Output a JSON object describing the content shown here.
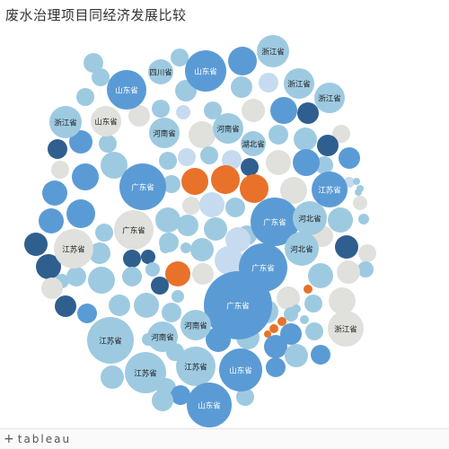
{
  "title": "废水治理项目同经济发展比较",
  "footer": {
    "logo_text": "tableau",
    "logo_mark": "+"
  },
  "chart_data": {
    "type": "bubble",
    "title": "废水治理项目同经济发展比较",
    "bubbles": [
      {
        "label": "浙江省",
        "value": 6,
        "color": "#9ecae1"
      },
      {
        "label": "四川省",
        "value": 3,
        "color": "#9ecae1"
      },
      {
        "label": "山东省",
        "value": 8,
        "color": "#5b9bd5"
      },
      {
        "label": "山东省",
        "value": 7,
        "color": "#5b9bd5"
      },
      {
        "label": "浙江省",
        "value": 5,
        "color": "#9ecae1"
      },
      {
        "label": "浙江省",
        "value": 5,
        "color": "#9ecae1"
      },
      {
        "label": "浙江省",
        "value": 5,
        "color": "#9ecae1"
      },
      {
        "label": "山东省",
        "value": 5,
        "color": "#e0e0dc"
      },
      {
        "label": "河南省",
        "value": 5,
        "color": "#9ecae1"
      },
      {
        "label": "河南省",
        "value": 5,
        "color": "#9ecae1"
      },
      {
        "label": "湖北省",
        "value": 4,
        "color": "#9ecae1"
      },
      {
        "label": "广东省",
        "value": 9,
        "color": "#5b9bd5"
      },
      {
        "label": "江苏省",
        "value": 7,
        "color": "#5b9bd5"
      },
      {
        "label": "广东省",
        "value": 7,
        "color": "#e0e0dc"
      },
      {
        "label": "广东省",
        "value": 10,
        "color": "#5b9bd5"
      },
      {
        "label": "河北省",
        "value": 5,
        "color": "#9ecae1"
      },
      {
        "label": "江苏省",
        "value": 7,
        "color": "#e0e0dc"
      },
      {
        "label": "河北省",
        "value": 5,
        "color": "#9ecae1"
      },
      {
        "label": "广东省",
        "value": 10,
        "color": "#5b9bd5"
      },
      {
        "label": "广东省",
        "value": 13,
        "color": "#5b9bd5"
      },
      {
        "label": "河南省",
        "value": 6,
        "color": "#9ecae1"
      },
      {
        "label": "河南省",
        "value": 6,
        "color": "#9ecae1"
      },
      {
        "label": "江苏省",
        "value": 10,
        "color": "#9ecae1"
      },
      {
        "label": "浙江省",
        "value": 5,
        "color": "#e0e0dc"
      },
      {
        "label": "江苏省",
        "value": 7,
        "color": "#9ecae1"
      },
      {
        "label": "江苏省",
        "value": 8,
        "color": "#9ecae1"
      },
      {
        "label": "山东省",
        "value": 9,
        "color": "#5b9bd5"
      },
      {
        "label": "山东省",
        "value": 8,
        "color": "#5b9bd5"
      }
    ],
    "legend": []
  }
}
